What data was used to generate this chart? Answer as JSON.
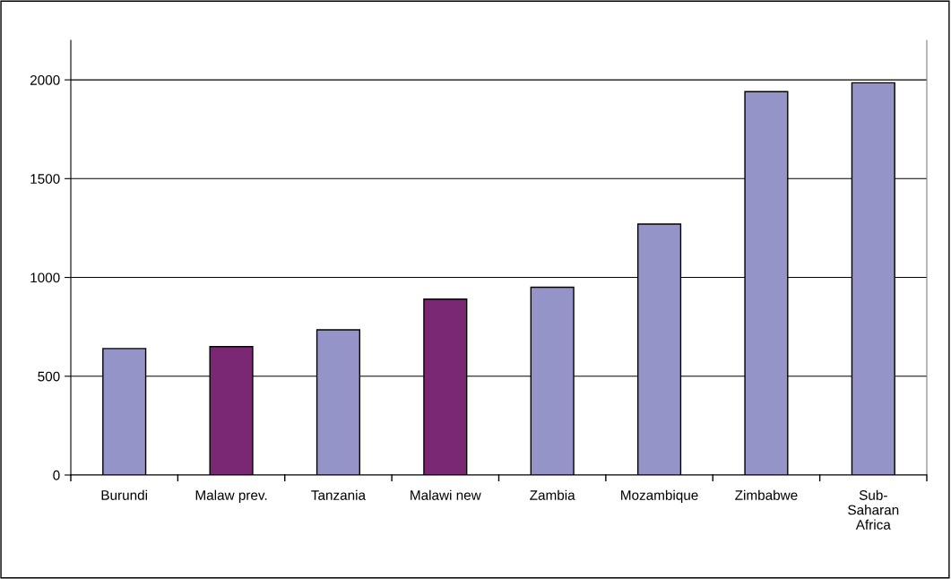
{
  "chart_data": {
    "type": "bar",
    "categories": [
      "Burundi",
      "Malaw prev.",
      "Tanzania",
      "Malawi new",
      "Zambia",
      "Mozambique",
      "Zimbabwe",
      "Sub-\nSaharan\nAfrica"
    ],
    "values": [
      640,
      650,
      735,
      890,
      950,
      1270,
      1940,
      1985
    ],
    "colors": [
      "#9494c8",
      "#7a2874",
      "#9494c8",
      "#7a2874",
      "#9494c8",
      "#9494c8",
      "#9494c8",
      "#9494c8"
    ],
    "ylim": [
      0,
      2200
    ],
    "yticks": [
      0,
      500,
      1000,
      1500,
      2000
    ],
    "grid": "y",
    "legend": false
  }
}
